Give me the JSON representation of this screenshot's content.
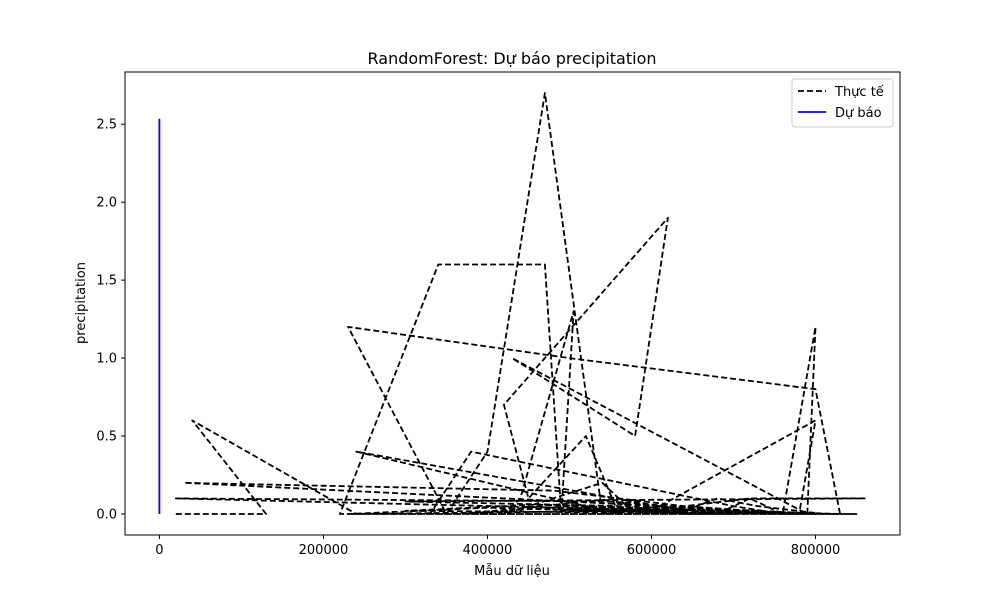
{
  "chart_data": {
    "type": "line",
    "title": "RandomForest: Dự báo precipitation",
    "xlabel": "Mẫu dữ liệu",
    "ylabel": "precipitation",
    "xlim": [
      -42000,
      903000
    ],
    "ylim": [
      -0.135,
      2.835
    ],
    "x_ticks": [
      0,
      200000,
      400000,
      600000,
      800000
    ],
    "x_tick_labels": [
      "0",
      "200000",
      "400000",
      "600000",
      "800000"
    ],
    "y_ticks": [
      0.0,
      0.5,
      1.0,
      1.5,
      2.0,
      2.5
    ],
    "y_tick_labels": [
      "0.0",
      "0.5",
      "1.0",
      "1.5",
      "2.0",
      "2.5"
    ],
    "grid": false,
    "legend_position": "upper right",
    "series": [
      {
        "name": "Thực tế",
        "style": "dashed",
        "color": "#000000",
        "x": [
          20000,
          130000,
          40000,
          240000,
          550000,
          700000,
          640000,
          830000,
          800000,
          500000,
          230000,
          300000,
          350000,
          400000,
          470000,
          540000,
          610000,
          680000,
          720000,
          760000,
          800000,
          790000,
          430000,
          580000,
          620000,
          420000,
          450000,
          520000,
          560000,
          240000,
          610000,
          800000,
          780000,
          330000,
          380000,
          700000,
          760000,
          820000,
          850000,
          220000,
          340000,
          470000,
          490000,
          505000,
          440000,
          420000,
          540000,
          580000,
          640000,
          780000,
          500000,
          370000,
          560000,
          630000,
          680000,
          730000,
          810000,
          30000,
          480000,
          640000,
          720000,
          860000,
          300000,
          570000,
          700000,
          820000,
          480000,
          640000,
          20000,
          550000,
          750000,
          830000,
          460000,
          300000,
          800000,
          500000,
          650000,
          580000,
          230000,
          400000,
          600000,
          830000
        ],
        "y": [
          0.0,
          0.0,
          0.6,
          0.0,
          0.0,
          0.0,
          0.0,
          0.0,
          0.8,
          1.0,
          1.2,
          0.5,
          0.0,
          0.4,
          2.7,
          0.0,
          0.05,
          0.0,
          0.1,
          0.0,
          1.2,
          0.0,
          1.0,
          0.5,
          1.9,
          0.7,
          0.1,
          0.5,
          0.0,
          0.4,
          0.05,
          0.6,
          0.0,
          0.0,
          0.4,
          0.05,
          0.0,
          0.0,
          0.0,
          0.0,
          1.6,
          1.6,
          0.0,
          1.3,
          0.1,
          0.0,
          0.2,
          0.0,
          0.05,
          0.0,
          0.05,
          0.0,
          0.1,
          0.0,
          0.1,
          0.05,
          0.0,
          0.2,
          0.15,
          0.05,
          0.1,
          0.1,
          0.08,
          0.05,
          0.02,
          0.0,
          0.03,
          0.02,
          0.1,
          0.08,
          0.0,
          0.0,
          0.06,
          0.02,
          0.0,
          0.04,
          0.0,
          0.02,
          0.0,
          0.04,
          0.01,
          0.0
        ]
      },
      {
        "name": "Dự báo",
        "style": "solid",
        "color": "#0000ff",
        "x": [
          0,
          0,
          0,
          0,
          0,
          0,
          0
        ],
        "y": [
          0.0,
          2.53,
          0.3,
          1.85,
          0.05,
          1.2,
          0.0
        ]
      }
    ]
  },
  "colors": {
    "actual": "#000000",
    "predicted": "#0000ff",
    "axes": "#000000",
    "background": "#ffffff",
    "legend_border": "#cccccc"
  }
}
